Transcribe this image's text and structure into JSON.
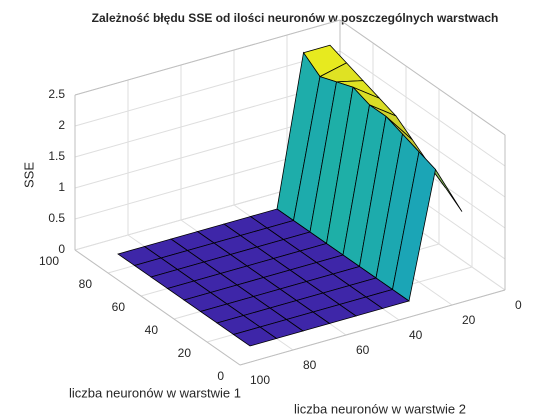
{
  "chart_data": {
    "type": "surface",
    "title": "Zależność błędu SSE od ilości neuronów w poszczególnych warstwach",
    "xlabel": "liczba neuronów w warstwie 2",
    "ylabel": "liczba neuronów w warstwie 1",
    "zlabel": "SSE",
    "x": [
      10,
      20,
      30,
      40,
      50,
      60,
      70,
      80,
      90
    ],
    "y": [
      10,
      20,
      30,
      40,
      50,
      60,
      70,
      80,
      90
    ],
    "z": [
      [
        1.2,
        2.0,
        0,
        0,
        0,
        0,
        0,
        0,
        0
      ],
      [
        1.4,
        2.1,
        0,
        0,
        0,
        0,
        0,
        0,
        0
      ],
      [
        1.6,
        2.2,
        0,
        0,
        0,
        0,
        0,
        0,
        0
      ],
      [
        1.8,
        2.3,
        0,
        0,
        0,
        0,
        0,
        0,
        0
      ],
      [
        2.0,
        2.3,
        0,
        0,
        0,
        0,
        0,
        0,
        0
      ],
      [
        2.1,
        2.4,
        0,
        0,
        0,
        0,
        0,
        0,
        0
      ],
      [
        2.2,
        2.3,
        0,
        0,
        0,
        0,
        0,
        0,
        0
      ],
      [
        2.3,
        2.2,
        0,
        0,
        0,
        0,
        0,
        0,
        0
      ],
      [
        2.4,
        2.4,
        0,
        0,
        0,
        0,
        0,
        0,
        0
      ]
    ],
    "xlim": [
      0,
      100
    ],
    "xticks": [
      0,
      20,
      40,
      60,
      80,
      100
    ],
    "ylim": [
      0,
      100
    ],
    "yticks": [
      0,
      20,
      40,
      60,
      80,
      100
    ],
    "zlim": [
      0,
      2.5
    ],
    "zticks": [
      0,
      0.5,
      1,
      1.5,
      2,
      2.5
    ],
    "grid": true,
    "colormap": [
      "#3e26a8",
      "#1289dd",
      "#20b4a0",
      "#b7bd39",
      "#f9fb15"
    ]
  }
}
